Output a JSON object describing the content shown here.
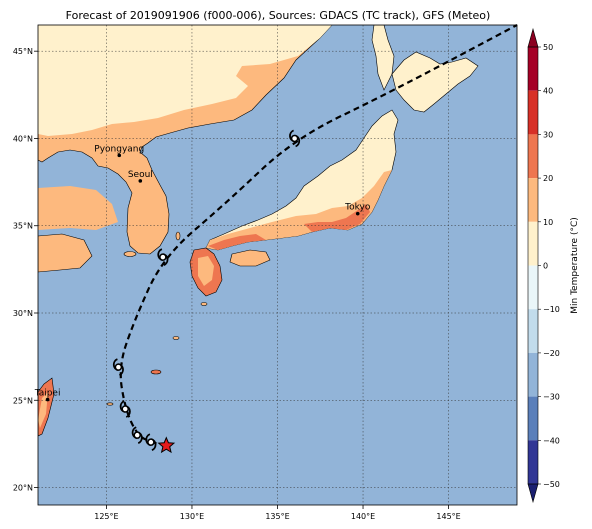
{
  "title": "Forecast of 2019091906 (f000-006), Sources: GDACS (TC track), GFS (Meteo)",
  "map": {
    "lon_range": [
      121,
      149
    ],
    "lat_range": [
      19,
      46.5
    ],
    "lon_ticks": [
      {
        "value": 125,
        "label": "125°E"
      },
      {
        "value": 130,
        "label": "130°E"
      },
      {
        "value": 135,
        "label": "135°E"
      },
      {
        "value": 140,
        "label": "140°E"
      },
      {
        "value": 145,
        "label": "145°E"
      }
    ],
    "lat_ticks": [
      {
        "value": 20,
        "label": "20°N"
      },
      {
        "value": 25,
        "label": "25°N"
      },
      {
        "value": 30,
        "label": "30°N"
      },
      {
        "value": 35,
        "label": "35°N"
      },
      {
        "value": 40,
        "label": "40°N"
      },
      {
        "value": 45,
        "label": "45°N"
      }
    ],
    "cities": [
      {
        "name": "Pyongyang",
        "lon": 125.75,
        "lat": 39.03
      },
      {
        "name": "Seoul",
        "lon": 126.98,
        "lat": 37.57
      },
      {
        "name": "Tokyo",
        "lon": 139.69,
        "lat": 35.69
      },
      {
        "name": "Taipei",
        "lon": 121.56,
        "lat": 25.04
      }
    ],
    "track": [
      {
        "lon": 128.5,
        "lat": 22.4,
        "marker": "star"
      },
      {
        "lon": 127.6,
        "lat": 22.6,
        "marker": "typhoon"
      },
      {
        "lon": 126.8,
        "lat": 23.0,
        "marker": "typhoon"
      },
      {
        "lon": 126.1,
        "lat": 24.5,
        "marker": "typhoon"
      },
      {
        "lon": 125.7,
        "lat": 26.9,
        "marker": "typhoon"
      },
      {
        "lon": 126.6,
        "lat": 29.5,
        "marker": "none"
      },
      {
        "lon": 128.3,
        "lat": 33.2,
        "marker": "typhoon"
      },
      {
        "lon": 132.0,
        "lat": 36.3,
        "marker": "none"
      },
      {
        "lon": 136.0,
        "lat": 40.0,
        "marker": "typhoon"
      },
      {
        "lon": 141.5,
        "lat": 42.6,
        "marker": "none"
      },
      {
        "lon": 149.0,
        "lat": 46.5,
        "marker": "none"
      }
    ],
    "colors": {
      "ocean": "#92b4d8",
      "land_10_20": "#fdb97e",
      "land_0_10": "#fff1cc",
      "land_20_30": "#ee7650",
      "land_30_40": "#d73027"
    }
  },
  "colorbar": {
    "label": "Min Temperature (°C)",
    "min": -50,
    "max": 50,
    "ticks": [
      {
        "value": 50,
        "label": "50"
      },
      {
        "value": 40,
        "label": "40"
      },
      {
        "value": 30,
        "label": "30"
      },
      {
        "value": 20,
        "label": "20"
      },
      {
        "value": 10,
        "label": "10"
      },
      {
        "value": 0,
        "label": "0"
      },
      {
        "value": -10,
        "label": "−10"
      },
      {
        "value": -20,
        "label": "−20"
      },
      {
        "value": -30,
        "label": "−30"
      },
      {
        "value": -40,
        "label": "−40"
      },
      {
        "value": -50,
        "label": "−50"
      }
    ],
    "bands": [
      {
        "from": 40,
        "to": 50,
        "color": "#a50026"
      },
      {
        "from": 30,
        "to": 40,
        "color": "#d73027"
      },
      {
        "from": 20,
        "to": 30,
        "color": "#ee7650"
      },
      {
        "from": 10,
        "to": 20,
        "color": "#fdb97e"
      },
      {
        "from": 0,
        "to": 10,
        "color": "#fff1cc"
      },
      {
        "from": -10,
        "to": 0,
        "color": "#eaf6f9"
      },
      {
        "from": -20,
        "to": -10,
        "color": "#c2dcec"
      },
      {
        "from": -30,
        "to": -20,
        "color": "#92b4d8"
      },
      {
        "from": -40,
        "to": -30,
        "color": "#5a7fba"
      },
      {
        "from": -50,
        "to": -40,
        "color": "#313695"
      }
    ],
    "over_color": "#8b0020",
    "under_color": "#1a1f70"
  }
}
